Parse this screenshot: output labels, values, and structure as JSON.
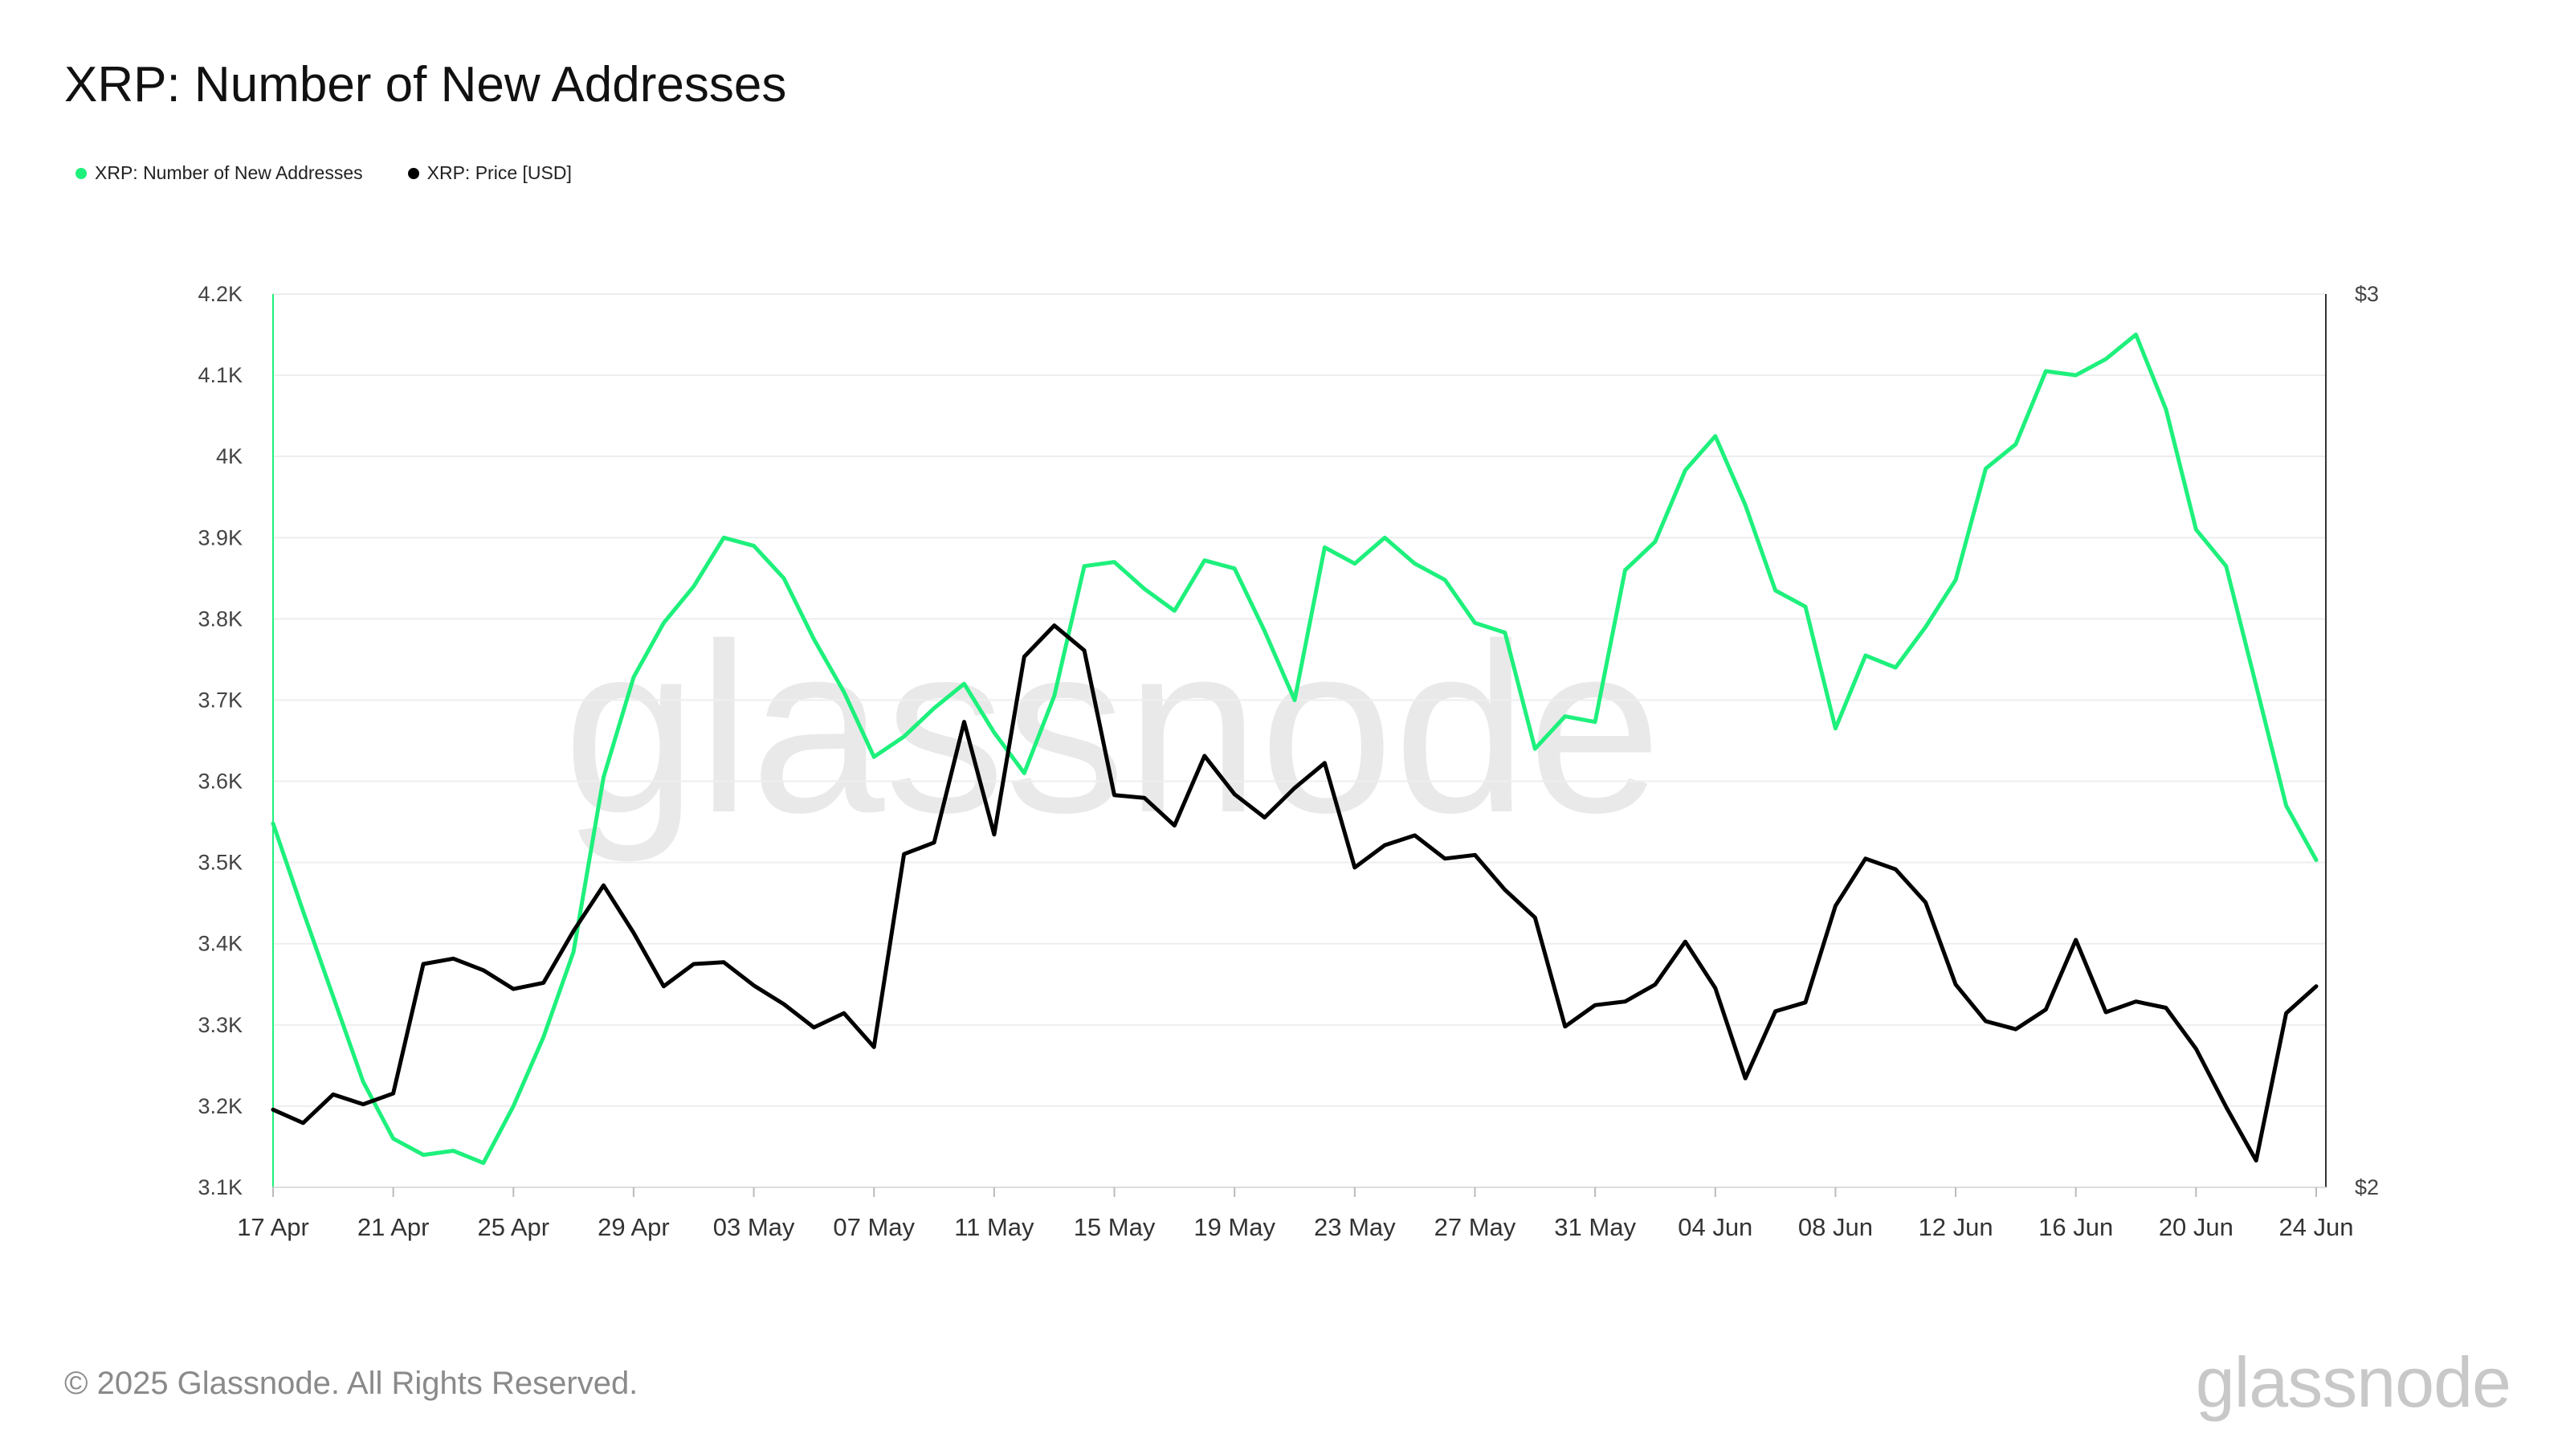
{
  "title": "XRP: Number of New Addresses",
  "watermark": "glassnode",
  "footer": {
    "copyright": "© 2025 Glassnode. All Rights Reserved.",
    "logo": "glassnode"
  },
  "colors": {
    "addresses": "#1ef07c",
    "price": "#000000",
    "grid": "#eeeeee",
    "axis": "#333333"
  },
  "legend": [
    {
      "label": "XRP: Number of New Addresses",
      "color": "#1ef07c"
    },
    {
      "label": "XRP: Price [USD]",
      "color": "#000000"
    }
  ],
  "chart_data": {
    "type": "line",
    "title": "XRP: Number of New Addresses",
    "x_start": "2025-04-17",
    "x_step_days": 1,
    "x_tick_labels": [
      "17 Apr",
      "21 Apr",
      "25 Apr",
      "29 Apr",
      "03 May",
      "07 May",
      "11 May",
      "15 May",
      "19 May",
      "23 May",
      "27 May",
      "31 May",
      "04 Jun",
      "08 Jun",
      "12 Jun",
      "16 Jun",
      "20 Jun",
      "24 Jun"
    ],
    "y_left": {
      "ylim": [
        3100,
        4200
      ],
      "ticks": [
        3100,
        3200,
        3300,
        3400,
        3500,
        3600,
        3700,
        3800,
        3900,
        4000,
        4100,
        4200
      ],
      "tick_labels": [
        "3.1K",
        "3.2K",
        "3.3K",
        "3.4K",
        "3.5K",
        "3.6K",
        "3.7K",
        "3.8K",
        "3.9K",
        "4K",
        "4.1K",
        "4.2K"
      ]
    },
    "y_right": {
      "ylim": [
        2,
        3
      ],
      "ticks": [
        2,
        3
      ],
      "tick_labels": [
        "$2",
        "$3"
      ]
    },
    "grid": true,
    "legend_position": "top-left",
    "series": [
      {
        "name": "XRP: Number of New Addresses",
        "axis": "left",
        "values": [
          3548,
          3440,
          3335,
          3230,
          3160,
          3140,
          3145,
          3130,
          3200,
          3285,
          3390,
          3605,
          3728,
          3795,
          3840,
          3900,
          3890,
          3850,
          3775,
          3710,
          3630,
          3655,
          3690,
          3720,
          3660,
          3610,
          3705,
          3865,
          3870,
          3837,
          3810,
          3872,
          3862,
          3785,
          3700,
          3888,
          3868,
          3900,
          3868,
          3848,
          3795,
          3783,
          3640,
          3680,
          3673,
          3860,
          3895,
          3983,
          4025,
          3940,
          3835,
          3815,
          3665,
          3755,
          3740,
          3790,
          3848,
          3985,
          4015,
          4105,
          4100,
          4120,
          4150,
          4058,
          3910,
          3865,
          3718,
          3570,
          3503
        ]
      },
      {
        "name": "XRP: Price [USD]",
        "axis": "right",
        "values": [
          2.087,
          2.072,
          2.104,
          2.093,
          2.105,
          2.25,
          2.256,
          2.243,
          2.222,
          2.229,
          2.287,
          2.338,
          2.285,
          2.225,
          2.25,
          2.252,
          2.226,
          2.205,
          2.179,
          2.195,
          2.157,
          2.373,
          2.386,
          2.521,
          2.395,
          2.594,
          2.629,
          2.601,
          2.439,
          2.436,
          2.405,
          2.483,
          2.44,
          2.414,
          2.447,
          2.475,
          2.358,
          2.383,
          2.394,
          2.368,
          2.372,
          2.333,
          2.302,
          2.18,
          2.204,
          2.208,
          2.227,
          2.275,
          2.223,
          2.122,
          2.197,
          2.207,
          2.315,
          2.368,
          2.356,
          2.319,
          2.227,
          2.186,
          2.177,
          2.199,
          2.277,
          2.196,
          2.208,
          2.201,
          2.155,
          2.09,
          2.03,
          2.195,
          2.225
        ]
      }
    ]
  }
}
